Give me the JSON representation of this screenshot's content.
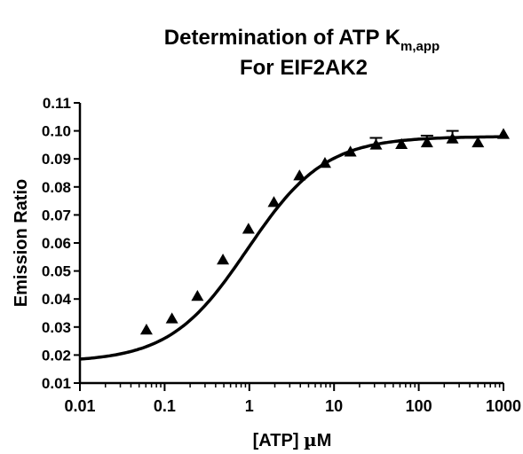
{
  "chart_data": {
    "type": "scatter",
    "title_line1_main": "Determination of ATP K",
    "title_line1_sub": "m,app",
    "title_line2": "For EIF2AK2",
    "xlabel_main": "[ATP] ",
    "xlabel_greek": "µ",
    "xlabel_unit": "M",
    "ylabel": "Emission  Ratio",
    "x_scale": "log",
    "xlim": [
      0.01,
      1000
    ],
    "ylim": [
      0.01,
      0.11
    ],
    "x_ticks": [
      0.01,
      0.1,
      1,
      10,
      100,
      1000
    ],
    "x_tick_labels": [
      "0.01",
      "0.1",
      "1",
      "10",
      "100",
      "1000"
    ],
    "y_ticks": [
      0.01,
      0.02,
      0.03,
      0.04,
      0.05,
      0.06,
      0.07,
      0.08,
      0.09,
      0.1,
      0.11
    ],
    "y_tick_labels": [
      "0.01",
      "0.02",
      "0.03",
      "0.04",
      "0.05",
      "0.06",
      "0.07",
      "0.08",
      "0.09",
      "0.10",
      "0.11"
    ],
    "grid": false,
    "marker": "triangle",
    "series": [
      {
        "points": [
          {
            "x": 0.061,
            "y": 0.029
          },
          {
            "x": 0.122,
            "y": 0.033
          },
          {
            "x": 0.244,
            "y": 0.041
          },
          {
            "x": 0.488,
            "y": 0.054
          },
          {
            "x": 0.977,
            "y": 0.065
          },
          {
            "x": 1.95,
            "y": 0.0745
          },
          {
            "x": 3.91,
            "y": 0.084
          },
          {
            "x": 7.81,
            "y": 0.0885
          },
          {
            "x": 15.6,
            "y": 0.0925
          },
          {
            "x": 31.3,
            "y": 0.095,
            "err": 0.0025
          },
          {
            "x": 62.5,
            "y": 0.0952
          },
          {
            "x": 125,
            "y": 0.0958,
            "err": 0.0025
          },
          {
            "x": 250,
            "y": 0.0972,
            "err": 0.0028
          },
          {
            "x": 500,
            "y": 0.0958
          },
          {
            "x": 1000,
            "y": 0.0988
          }
        ]
      }
    ],
    "fit": {
      "model": "sigmoidal",
      "bottom": 0.0175,
      "top": 0.098,
      "ec50": 0.95,
      "hill": 0.95
    }
  }
}
